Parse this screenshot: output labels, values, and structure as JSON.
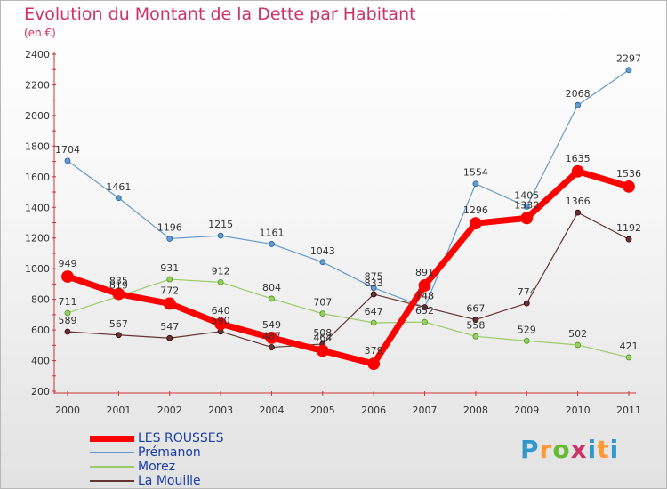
{
  "title": "Evolution du Montant de la Dette par Habitant",
  "subtitle": "(en €)",
  "logo_text": "Proxiti",
  "chart_data": {
    "type": "line",
    "title": "Evolution du Montant de la Dette par Habitant",
    "subtitle": "(en €)",
    "x": [
      2000,
      2001,
      2002,
      2003,
      2004,
      2005,
      2006,
      2007,
      2008,
      2009,
      2010,
      2011
    ],
    "ylim": [
      200,
      2400
    ],
    "yticks": [
      200,
      400,
      600,
      800,
      1000,
      1200,
      1400,
      1600,
      1800,
      2000,
      2200,
      2400
    ],
    "grid": false,
    "legend_position": "bottom-left",
    "series": [
      {
        "name": "LES ROUSSES",
        "color": "#ff0000",
        "values": [
          949,
          835,
          772,
          640,
          549,
          464,
          379,
          891,
          1296,
          1330,
          1635,
          1536
        ]
      },
      {
        "name": "Prémanon",
        "color": "#6699cc",
        "values": [
          1704,
          1461,
          1196,
          1215,
          1161,
          1043,
          875,
          748,
          1554,
          1405,
          2068,
          2297
        ]
      },
      {
        "name": "Morez",
        "color": "#99cc66",
        "values": [
          711,
          819,
          931,
          912,
          804,
          707,
          647,
          652,
          558,
          529,
          502,
          421
        ]
      },
      {
        "name": "La Mouille",
        "color": "#663333",
        "values": [
          589,
          567,
          547,
          590,
          487,
          508,
          833,
          748,
          667,
          774,
          1366,
          1192
        ]
      }
    ]
  }
}
